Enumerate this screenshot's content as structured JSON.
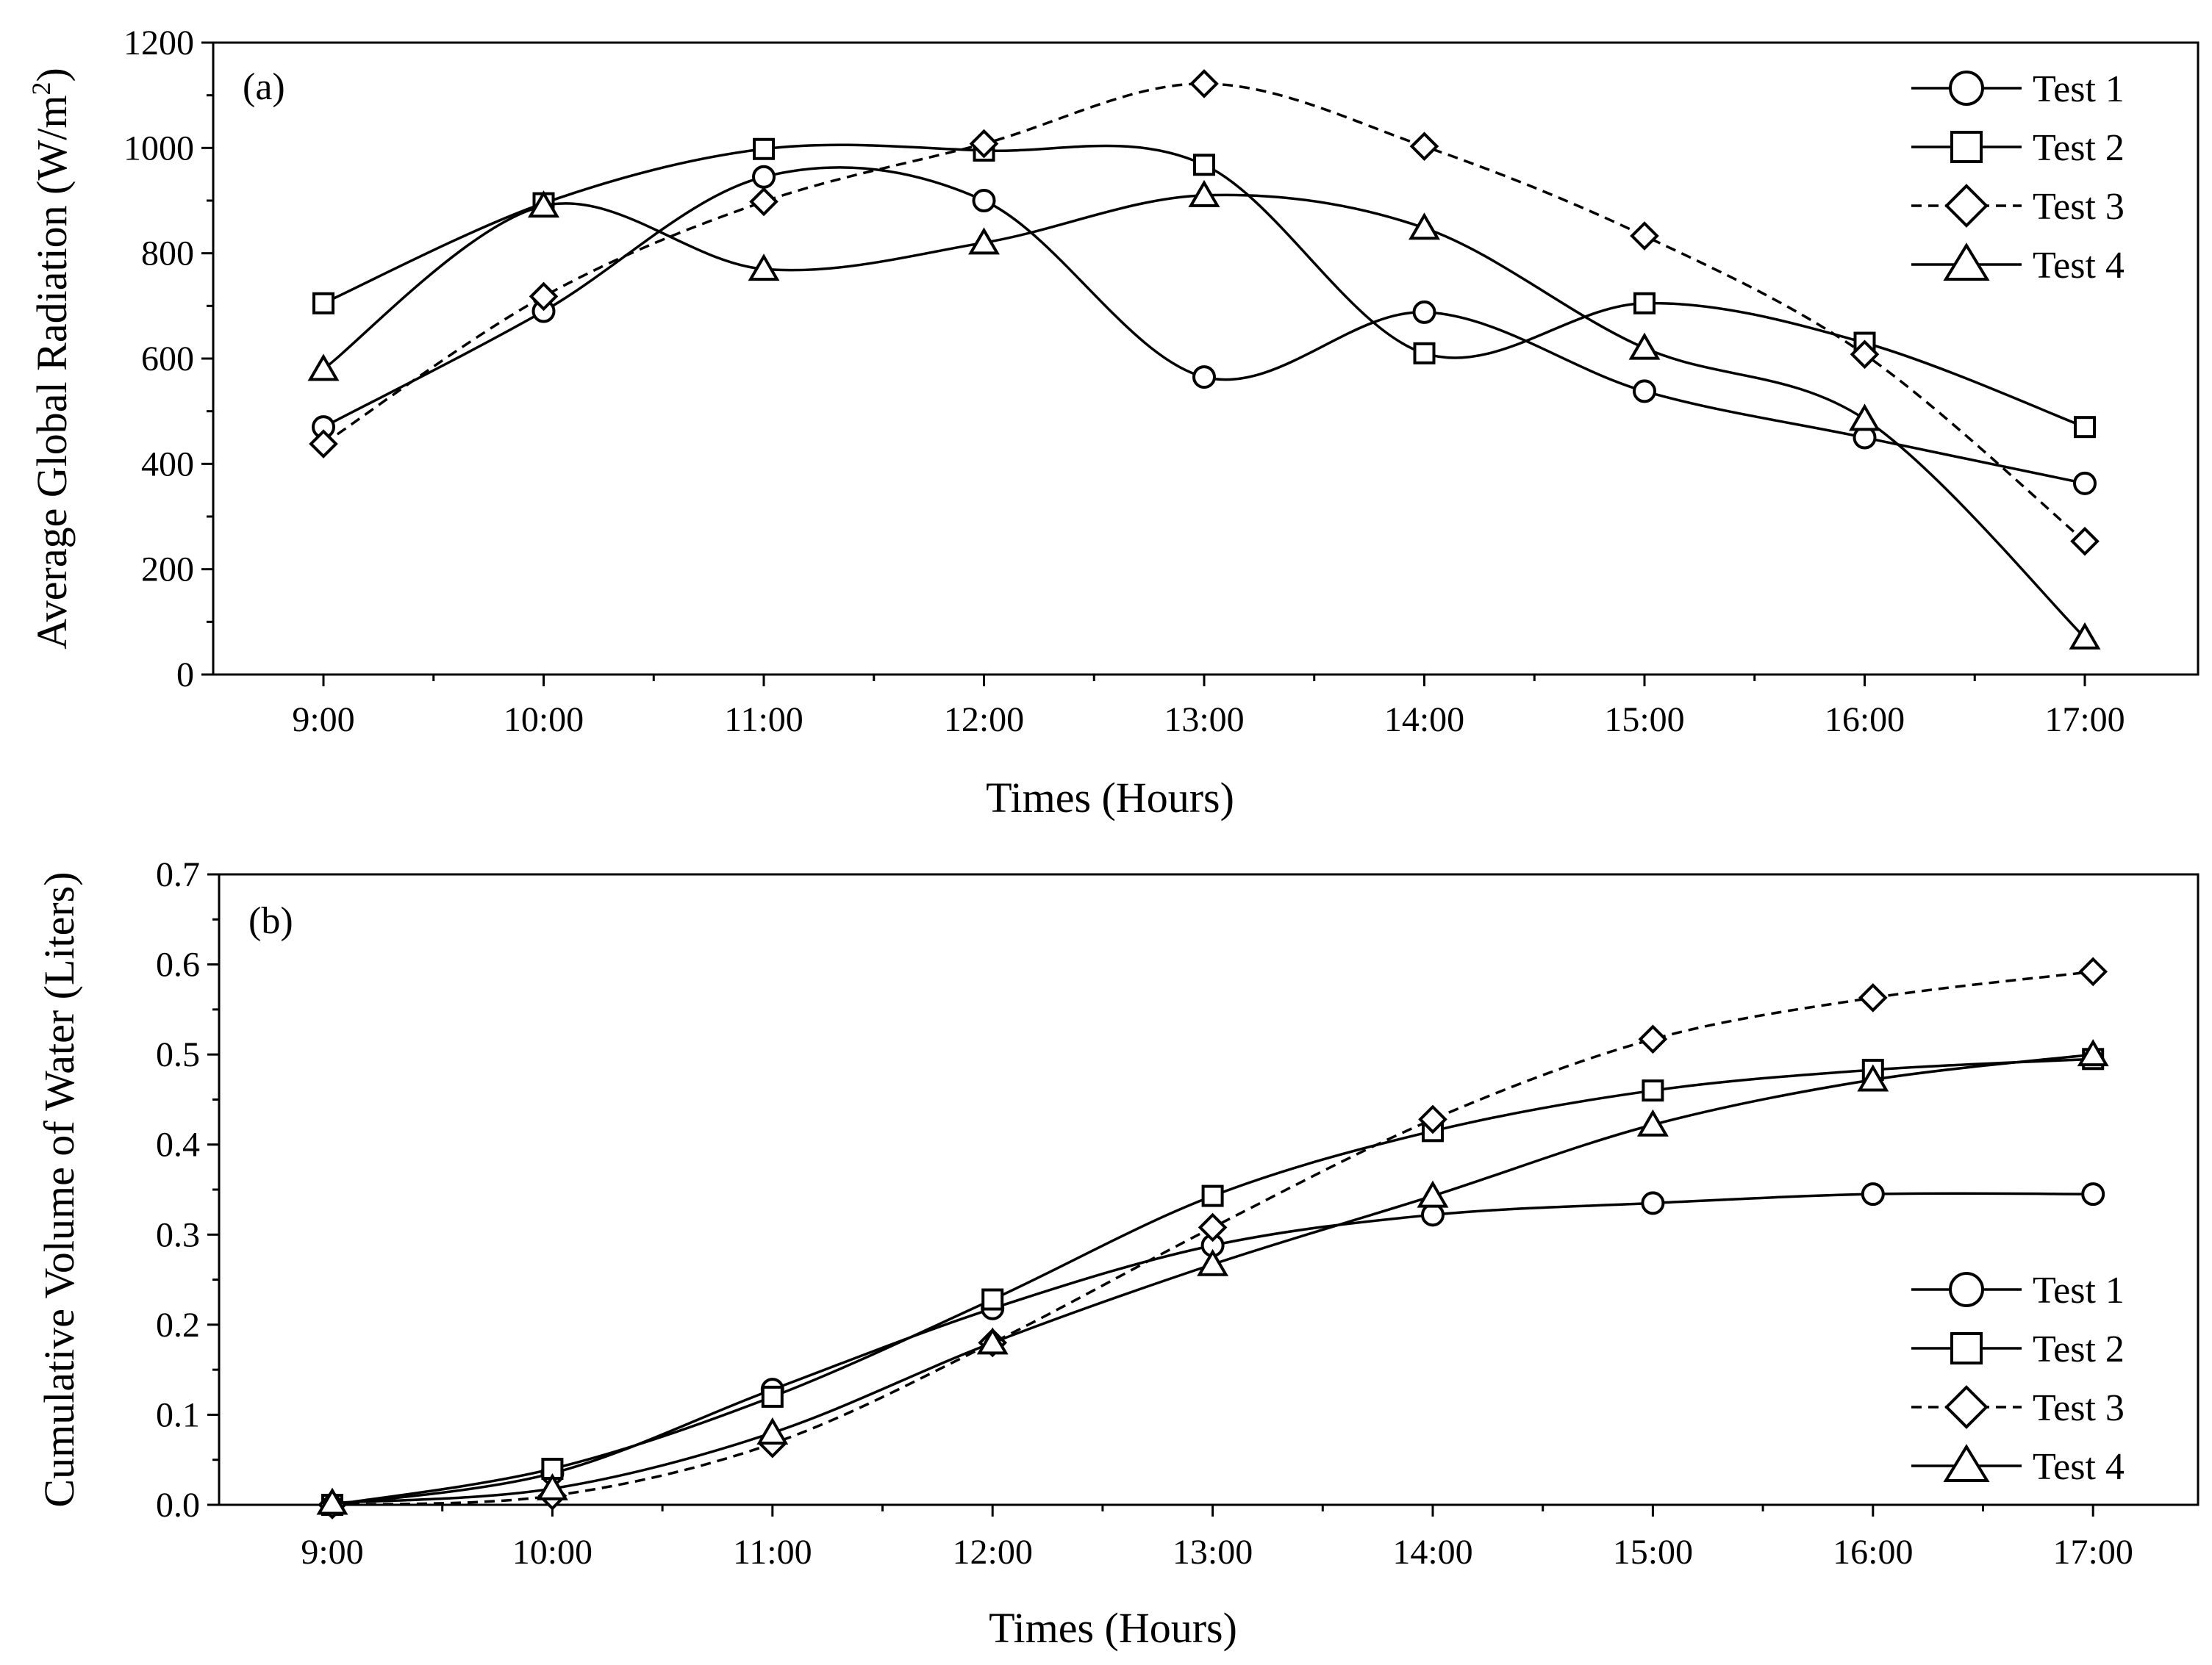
{
  "chart_data": [
    {
      "type": "line",
      "panel_label": "(a)",
      "title": "",
      "xlabel": "Times (Hours)",
      "ylabel_main": "Average Global Radiation (W/m",
      "ylabel_sup": "2",
      "ylabel_close": ")",
      "categories": [
        "9:00",
        "10:00",
        "11:00",
        "12:00",
        "13:00",
        "14:00",
        "15:00",
        "16:00",
        "17:00"
      ],
      "ylim": [
        0,
        1200
      ],
      "yticks": [
        "0",
        "200",
        "400",
        "600",
        "800",
        "1000",
        "1200"
      ],
      "legend_position": "top-right",
      "series": [
        {
          "name": "Test 1",
          "marker": "circle",
          "dash": "solid",
          "values": [
            470,
            690,
            945,
            900,
            565,
            688,
            538,
            450,
            363
          ]
        },
        {
          "name": "Test 2",
          "marker": "square",
          "dash": "solid",
          "values": [
            705,
            895,
            998,
            995,
            968,
            610,
            705,
            630,
            470
          ]
        },
        {
          "name": "Test 3",
          "marker": "diamond",
          "dash": "dashed",
          "values": [
            438,
            718,
            898,
            1008,
            1122,
            1003,
            833,
            608,
            253
          ]
        },
        {
          "name": "Test 4",
          "marker": "triangle",
          "dash": "solid",
          "values": [
            580,
            890,
            770,
            820,
            910,
            848,
            620,
            485,
            70
          ]
        }
      ]
    },
    {
      "type": "line",
      "panel_label": "(b)",
      "title": "",
      "xlabel": "Times (Hours)",
      "ylabel": "Cumulative Volume of Water (Liters)",
      "categories": [
        "9:00",
        "10:00",
        "11:00",
        "12:00",
        "13:00",
        "14:00",
        "15:00",
        "16:00",
        "17:00"
      ],
      "ylim": [
        0,
        0.7
      ],
      "yticks": [
        "0.0",
        "0.1",
        "0.2",
        "0.3",
        "0.4",
        "0.5",
        "0.6",
        "0.7"
      ],
      "legend_position": "bottom-right",
      "series": [
        {
          "name": "Test 1",
          "marker": "circle",
          "dash": "solid",
          "values": [
            0.0,
            0.035,
            0.128,
            0.218,
            0.288,
            0.322,
            0.335,
            0.345,
            0.345
          ]
        },
        {
          "name": "Test 2",
          "marker": "square",
          "dash": "solid",
          "values": [
            0.0,
            0.04,
            0.12,
            0.228,
            0.343,
            0.415,
            0.46,
            0.483,
            0.495
          ]
        },
        {
          "name": "Test 3",
          "marker": "diamond",
          "dash": "dashed",
          "values": [
            0.0,
            0.01,
            0.068,
            0.18,
            0.308,
            0.428,
            0.517,
            0.563,
            0.592
          ]
        },
        {
          "name": "Test 4",
          "marker": "triangle",
          "dash": "solid",
          "values": [
            0.002,
            0.018,
            0.08,
            0.18,
            0.267,
            0.343,
            0.422,
            0.472,
            0.5
          ]
        }
      ]
    }
  ]
}
